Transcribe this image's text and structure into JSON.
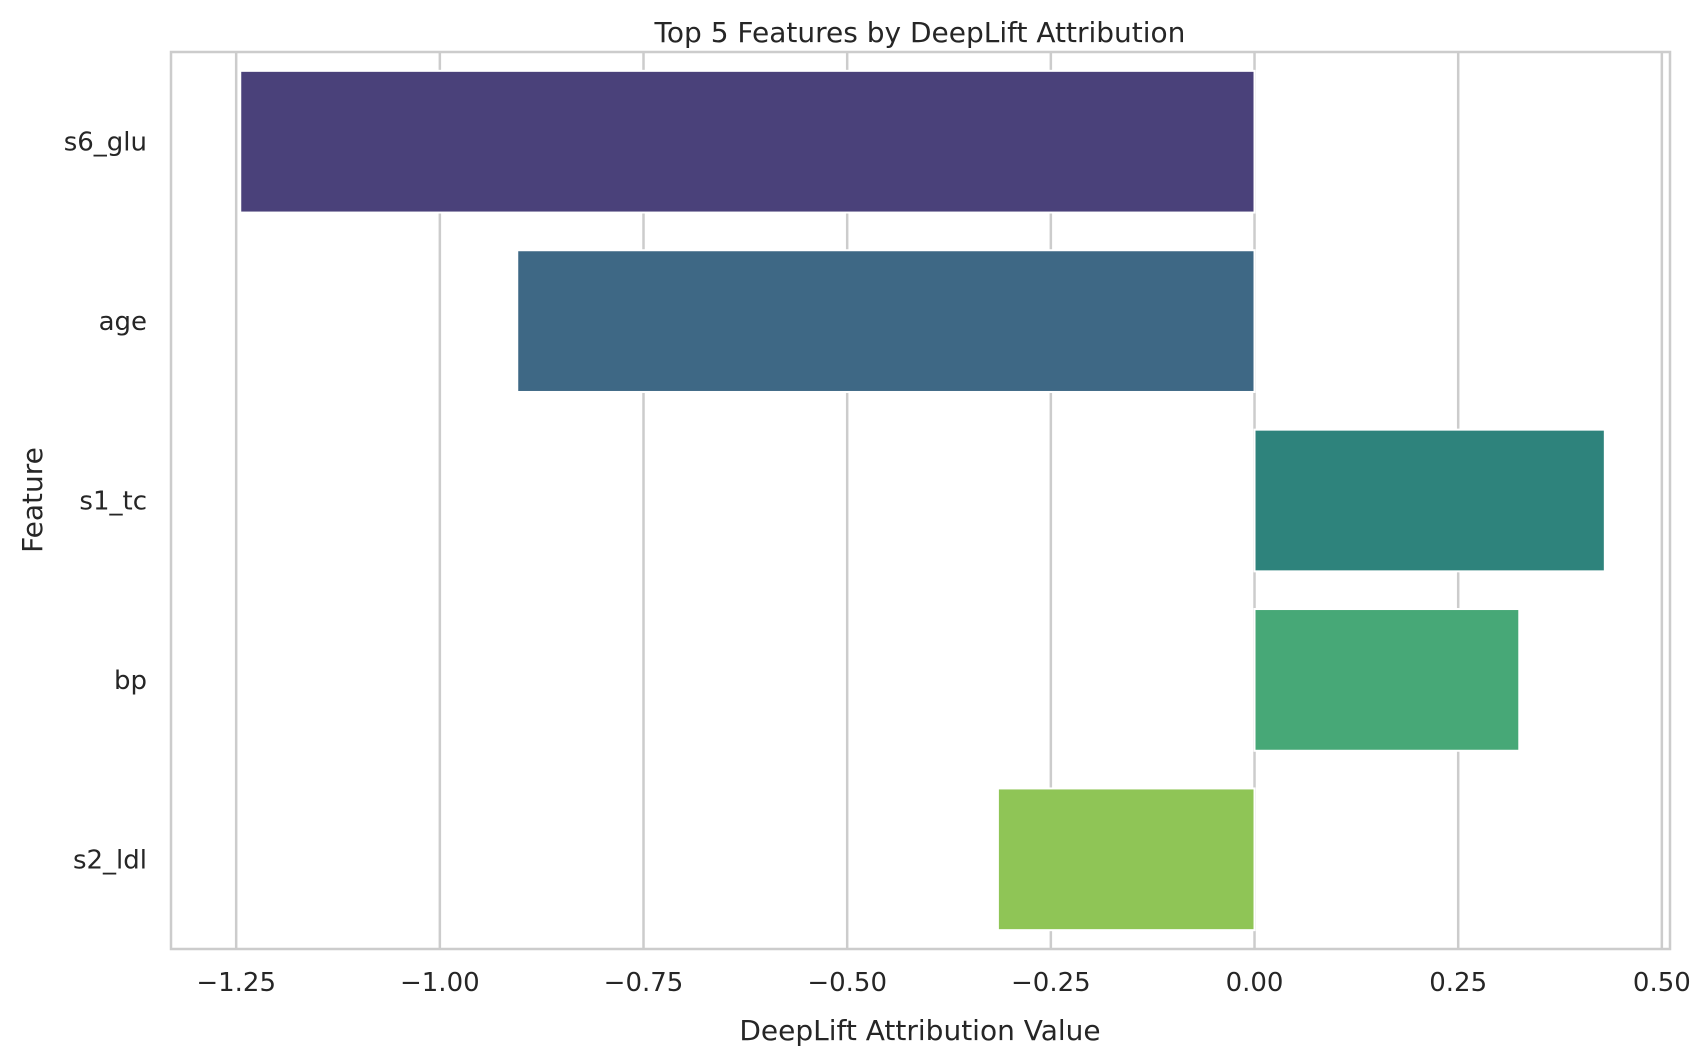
{
  "chart_data": {
    "type": "bar",
    "orientation": "horizontal",
    "title": "Top 5 Features by DeepLift Attribution",
    "xlabel": "DeepLift Attribution Value",
    "ylabel": "Feature",
    "categories": [
      "s6_glu",
      "age",
      "s1_tc",
      "bp",
      "s2_ldl"
    ],
    "values": [
      -1.245,
      -0.905,
      0.43,
      0.325,
      -0.315
    ],
    "colors": [
      "#4a417a",
      "#3e6885",
      "#2e837c",
      "#47a877",
      "#8fc556"
    ],
    "xlim": [
      -1.33,
      0.51
    ],
    "xticks": [
      -1.25,
      -1.0,
      -0.75,
      -0.5,
      -0.25,
      0.0,
      0.25,
      0.5
    ],
    "xtick_labels": [
      "−1.25",
      "−1.00",
      "−0.75",
      "−0.50",
      "−0.25",
      "0.00",
      "0.25",
      "0.50"
    ],
    "grid": "vertical",
    "legend": "none"
  }
}
